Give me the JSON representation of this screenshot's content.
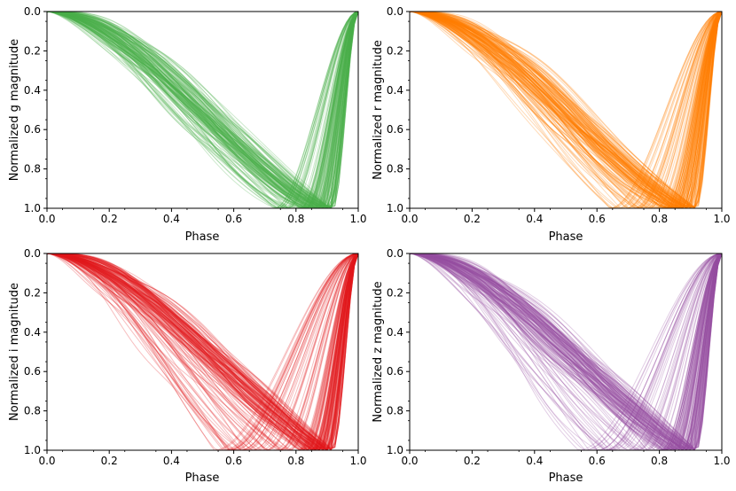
{
  "chart_data": [
    {
      "type": "line",
      "panel": "top-left",
      "xlabel": "Phase",
      "ylabel": "Normalized g  magnitude",
      "color": "#4daf4a",
      "xlim": [
        0.0,
        1.0
      ],
      "ylim": [
        1.0,
        0.0
      ],
      "y_inverted": true,
      "xticks": [
        "0.0",
        "0.2",
        "0.4",
        "0.6",
        "0.8",
        "1.0"
      ],
      "yticks": [
        "0.0",
        "0.2",
        "0.4",
        "0.6",
        "0.8",
        "1.0"
      ],
      "n_curves": 160,
      "min_phase_range": [
        0.72,
        0.92
      ],
      "plateau_level": 0.87,
      "representative_curve": {
        "x": [
          0.0,
          0.1,
          0.2,
          0.3,
          0.4,
          0.5,
          0.6,
          0.7,
          0.8,
          0.88,
          0.94,
          1.0
        ],
        "y": [
          0.0,
          0.2,
          0.4,
          0.56,
          0.7,
          0.79,
          0.84,
          0.88,
          0.93,
          1.0,
          0.45,
          0.0
        ]
      }
    },
    {
      "type": "line",
      "panel": "top-right",
      "xlabel": "Phase",
      "ylabel": "Normalized r  magnitude",
      "color": "#ff7f00",
      "xlim": [
        0.0,
        1.0
      ],
      "ylim": [
        1.0,
        0.0
      ],
      "y_inverted": true,
      "xticks": [
        "0.0",
        "0.2",
        "0.4",
        "0.6",
        "0.8",
        "1.0"
      ],
      "yticks": [
        "0.0",
        "0.2",
        "0.4",
        "0.6",
        "0.8",
        "1.0"
      ],
      "n_curves": 160,
      "min_phase_range": [
        0.64,
        0.92
      ],
      "plateau_level": 0.85,
      "representative_curve": {
        "x": [
          0.0,
          0.1,
          0.2,
          0.3,
          0.4,
          0.5,
          0.6,
          0.7,
          0.8,
          0.88,
          0.94,
          1.0
        ],
        "y": [
          0.0,
          0.2,
          0.4,
          0.55,
          0.68,
          0.77,
          0.83,
          0.87,
          0.92,
          1.0,
          0.45,
          0.0
        ]
      }
    },
    {
      "type": "line",
      "panel": "bottom-left",
      "xlabel": "Phase",
      "ylabel": "Normalized i magnitude",
      "color": "#e41a1c",
      "xlim": [
        0.0,
        1.0
      ],
      "ylim": [
        1.0,
        0.0
      ],
      "y_inverted": true,
      "xticks": [
        "0.0",
        "0.2",
        "0.4",
        "0.6",
        "0.8",
        "1.0"
      ],
      "yticks": [
        "0.0",
        "0.2",
        "0.4",
        "0.6",
        "0.8",
        "1.0"
      ],
      "n_curves": 160,
      "min_phase_range": [
        0.52,
        0.92
      ],
      "plateau_level": 0.82,
      "representative_curve": {
        "x": [
          0.0,
          0.1,
          0.2,
          0.3,
          0.4,
          0.5,
          0.6,
          0.7,
          0.8,
          0.88,
          0.94,
          1.0
        ],
        "y": [
          0.0,
          0.18,
          0.36,
          0.5,
          0.62,
          0.7,
          0.76,
          0.82,
          0.9,
          1.0,
          0.45,
          0.0
        ]
      }
    },
    {
      "type": "line",
      "panel": "bottom-right",
      "xlabel": "Phase",
      "ylabel": "Normalized z magnitude",
      "color": "#984ea3",
      "xlim": [
        0.0,
        1.0
      ],
      "ylim": [
        1.0,
        0.0
      ],
      "y_inverted": true,
      "xticks": [
        "0.0",
        "0.2",
        "0.4",
        "0.6",
        "0.8",
        "1.0"
      ],
      "yticks": [
        "0.0",
        "0.2",
        "0.4",
        "0.6",
        "0.8",
        "1.0"
      ],
      "n_curves": 160,
      "min_phase_range": [
        0.5,
        0.92
      ],
      "plateau_level": 0.82,
      "representative_curve": {
        "x": [
          0.0,
          0.1,
          0.2,
          0.3,
          0.4,
          0.5,
          0.6,
          0.7,
          0.8,
          0.88,
          0.94,
          1.0
        ],
        "y": [
          0.0,
          0.18,
          0.36,
          0.5,
          0.62,
          0.7,
          0.76,
          0.82,
          0.9,
          1.0,
          0.45,
          0.0
        ]
      }
    }
  ]
}
